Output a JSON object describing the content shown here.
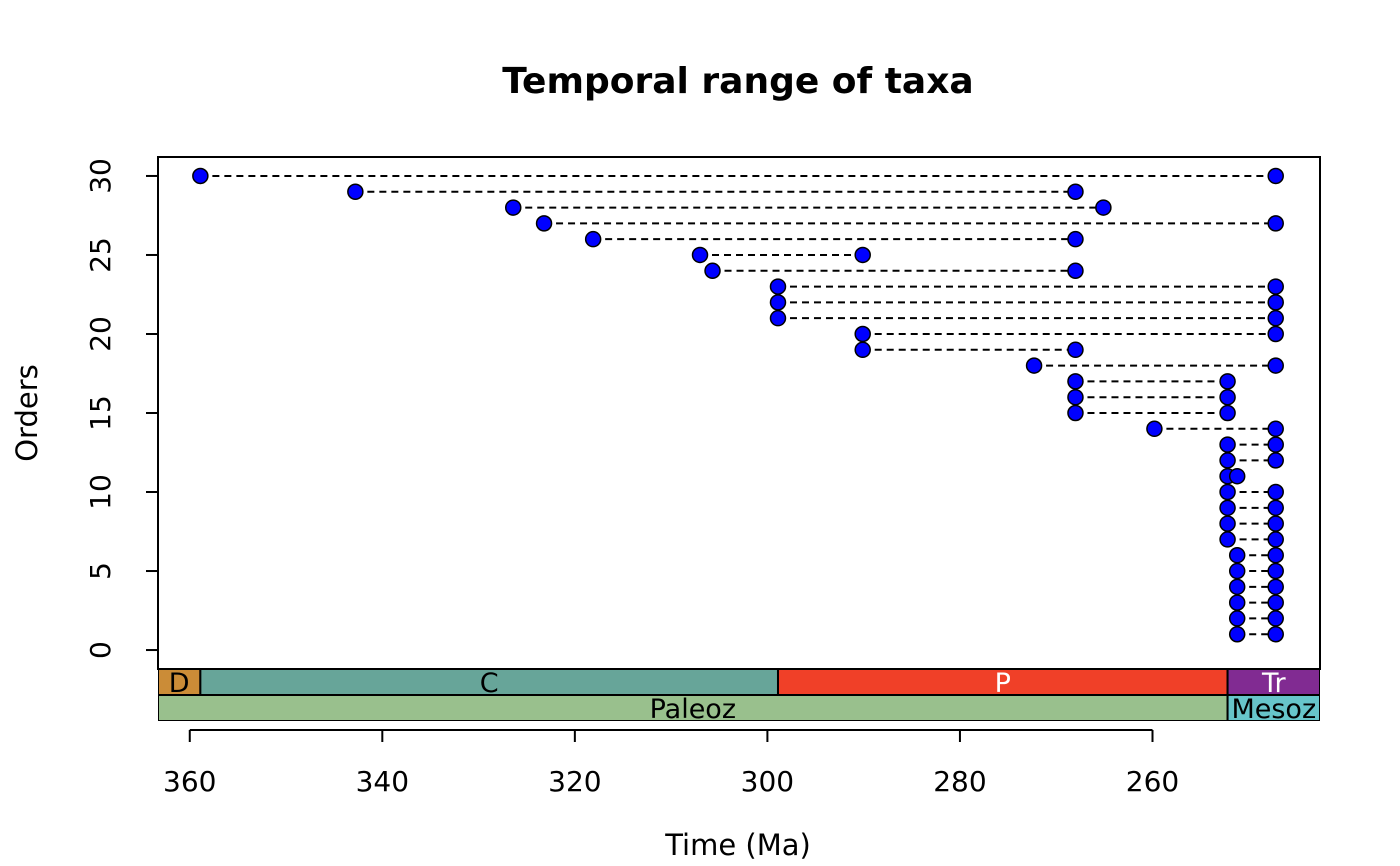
{
  "chart_data": {
    "type": "scatter",
    "title": "Temporal range of taxa",
    "xlabel": "Time (Ma)",
    "ylabel": "Orders",
    "xlim": [
      363.3,
      242.6
    ],
    "ylim": [
      -1.2,
      31.2
    ],
    "x_ticks": [
      360,
      340,
      320,
      300,
      280,
      260
    ],
    "y_ticks": [
      0,
      5,
      10,
      15,
      20,
      25,
      30
    ],
    "x_reversed": true,
    "grid": false,
    "point_color": "#0000ff",
    "point_stroke": "#000000",
    "segment_style": "dashed",
    "ranges": [
      {
        "order": 30,
        "first": 358.9,
        "last": 247.2
      },
      {
        "order": 29,
        "first": 342.8,
        "last": 268.0
      },
      {
        "order": 28,
        "first": 326.4,
        "last": 265.1
      },
      {
        "order": 27,
        "first": 323.2,
        "last": 247.2
      },
      {
        "order": 26,
        "first": 318.1,
        "last": 268.0
      },
      {
        "order": 25,
        "first": 307.0,
        "last": 290.1
      },
      {
        "order": 24,
        "first": 305.7,
        "last": 268.0
      },
      {
        "order": 23,
        "first": 298.9,
        "last": 247.2
      },
      {
        "order": 22,
        "first": 298.9,
        "last": 247.2
      },
      {
        "order": 21,
        "first": 298.9,
        "last": 247.2
      },
      {
        "order": 20,
        "first": 290.1,
        "last": 247.2
      },
      {
        "order": 19,
        "first": 290.1,
        "last": 268.0
      },
      {
        "order": 18,
        "first": 272.3,
        "last": 247.2
      },
      {
        "order": 17,
        "first": 268.0,
        "last": 252.2
      },
      {
        "order": 16,
        "first": 268.0,
        "last": 252.2
      },
      {
        "order": 15,
        "first": 268.0,
        "last": 252.2
      },
      {
        "order": 14,
        "first": 259.8,
        "last": 247.2
      },
      {
        "order": 13,
        "first": 252.2,
        "last": 247.2
      },
      {
        "order": 12,
        "first": 252.2,
        "last": 247.2
      },
      {
        "order": 11,
        "first": 252.2,
        "last": 251.2
      },
      {
        "order": 10,
        "first": 252.2,
        "last": 247.2
      },
      {
        "order": 9,
        "first": 252.2,
        "last": 247.2
      },
      {
        "order": 8,
        "first": 252.2,
        "last": 247.2
      },
      {
        "order": 7,
        "first": 252.2,
        "last": 247.2
      },
      {
        "order": 6,
        "first": 251.2,
        "last": 247.2
      },
      {
        "order": 5,
        "first": 251.2,
        "last": 247.2
      },
      {
        "order": 4,
        "first": 251.2,
        "last": 247.2
      },
      {
        "order": 3,
        "first": 251.2,
        "last": 247.2
      },
      {
        "order": 2,
        "first": 251.2,
        "last": 247.2
      },
      {
        "order": 1,
        "first": 251.2,
        "last": 247.2
      }
    ],
    "timescale": {
      "periods": [
        {
          "label": "D",
          "start": 363.3,
          "end": 358.9,
          "color": "#cb8c37",
          "text_color": "#000000"
        },
        {
          "label": "C",
          "start": 358.9,
          "end": 298.9,
          "color": "#67a599",
          "text_color": "#000000"
        },
        {
          "label": "P",
          "start": 298.9,
          "end": 252.2,
          "color": "#f04028",
          "text_color": "#ffffff"
        },
        {
          "label": "Tr",
          "start": 252.2,
          "end": 242.6,
          "color": "#812b92",
          "text_color": "#ffffff"
        }
      ],
      "eras": [
        {
          "label": "Paleoz",
          "start": 363.3,
          "end": 252.2,
          "color": "#99c08d",
          "text_color": "#000000"
        },
        {
          "label": "Mesoz",
          "start": 252.2,
          "end": 242.6,
          "color": "#67c5ca",
          "text_color": "#000000"
        }
      ]
    }
  }
}
